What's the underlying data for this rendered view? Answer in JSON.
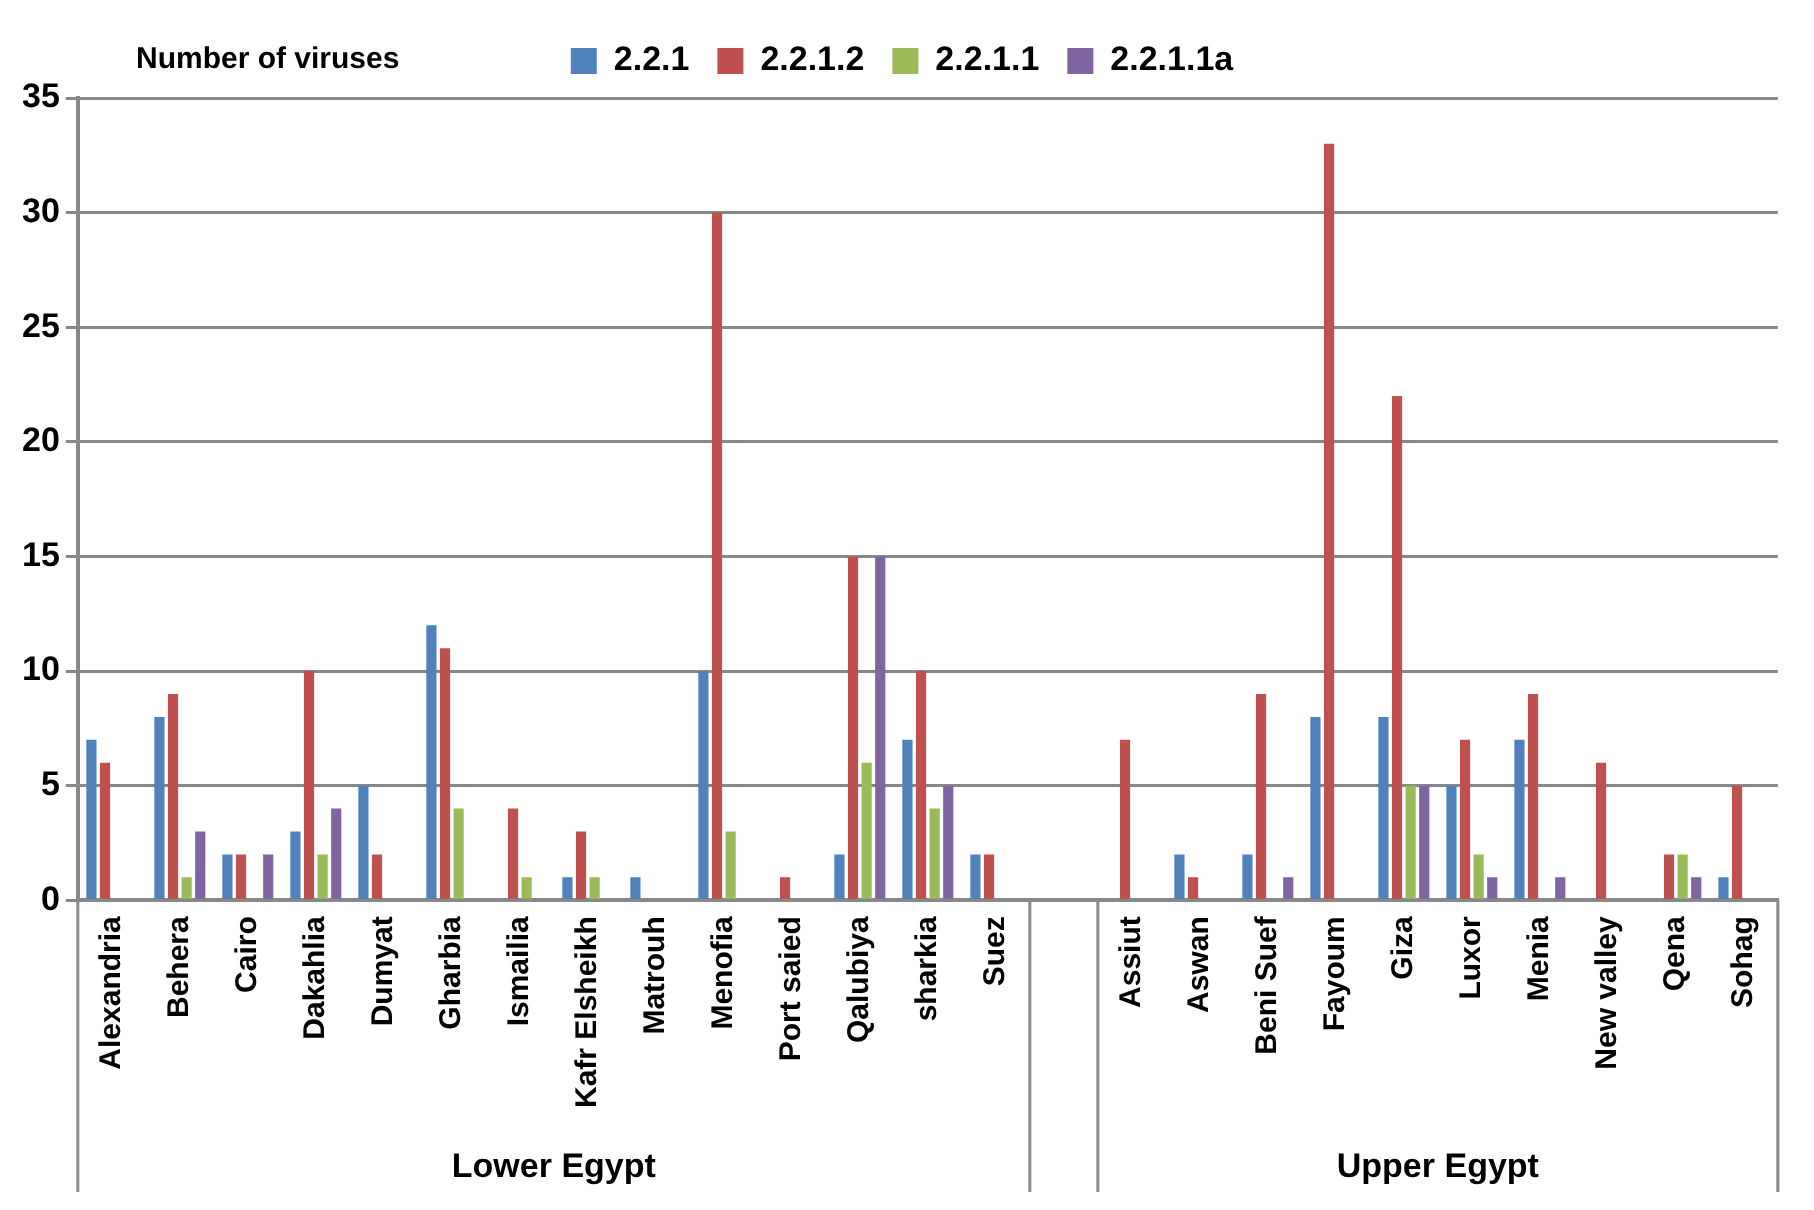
{
  "chart_data": {
    "type": "bar",
    "ylabel": "Number of viruses",
    "categories": [
      "Alexandria",
      "Behera",
      "Cairo",
      "Dakahlia",
      "Dumyat",
      "Gharbia",
      "Ismailia",
      "Kafr Elsheikh",
      "Matrouh",
      "Menofia",
      "Port saied",
      "Qalubiya",
      "sharkia",
      "Suez",
      null,
      "Assiut",
      "Aswan",
      "Beni Suef",
      "Fayoum",
      "Giza",
      "Luxor",
      "Menia",
      "New valley",
      "Qena",
      "Sohag"
    ],
    "series": [
      {
        "name": "2.2.1",
        "color": "#4f81bd",
        "values": [
          7,
          8,
          2,
          3,
          5,
          12,
          0,
          1,
          1,
          10,
          0,
          2,
          7,
          2,
          null,
          0,
          2,
          2,
          8,
          8,
          5,
          7,
          0,
          0,
          1
        ]
      },
      {
        "name": "2.2.1.2",
        "color": "#c0504d",
        "values": [
          6,
          9,
          2,
          10,
          2,
          11,
          4,
          3,
          0,
          30,
          1,
          15,
          10,
          2,
          null,
          7,
          1,
          9,
          33,
          22,
          7,
          9,
          6,
          2,
          5
        ]
      },
      {
        "name": "2.2.1.1",
        "color": "#9bbb59",
        "values": [
          0,
          1,
          0,
          2,
          0,
          4,
          1,
          1,
          0,
          3,
          0,
          6,
          4,
          0,
          null,
          0,
          0,
          0,
          0,
          5,
          2,
          0,
          0,
          2,
          0
        ]
      },
      {
        "name": "2.2.1.1a",
        "color": "#8064a2",
        "values": [
          0,
          3,
          2,
          4,
          0,
          0,
          0,
          0,
          0,
          0,
          0,
          15,
          5,
          0,
          null,
          0,
          0,
          1,
          0,
          5,
          1,
          1,
          0,
          1,
          0
        ]
      }
    ],
    "ylim": [
      0,
      35
    ],
    "yticks": [
      0,
      5,
      10,
      15,
      20,
      25,
      30,
      35
    ],
    "grid": "y",
    "legend": "top",
    "annotations": [
      "Lower Egypt",
      "Upper Egypt"
    ]
  }
}
